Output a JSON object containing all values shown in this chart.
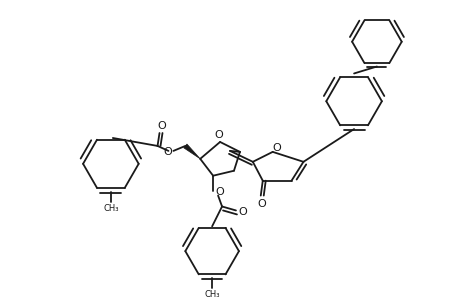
{
  "bg_color": "#ffffff",
  "line_color": "#1a1a1a",
  "line_width": 1.3,
  "figsize": [
    4.6,
    3.0
  ],
  "dpi": 100,
  "ylim": [
    0,
    300
  ],
  "xlim": [
    0,
    460
  ]
}
